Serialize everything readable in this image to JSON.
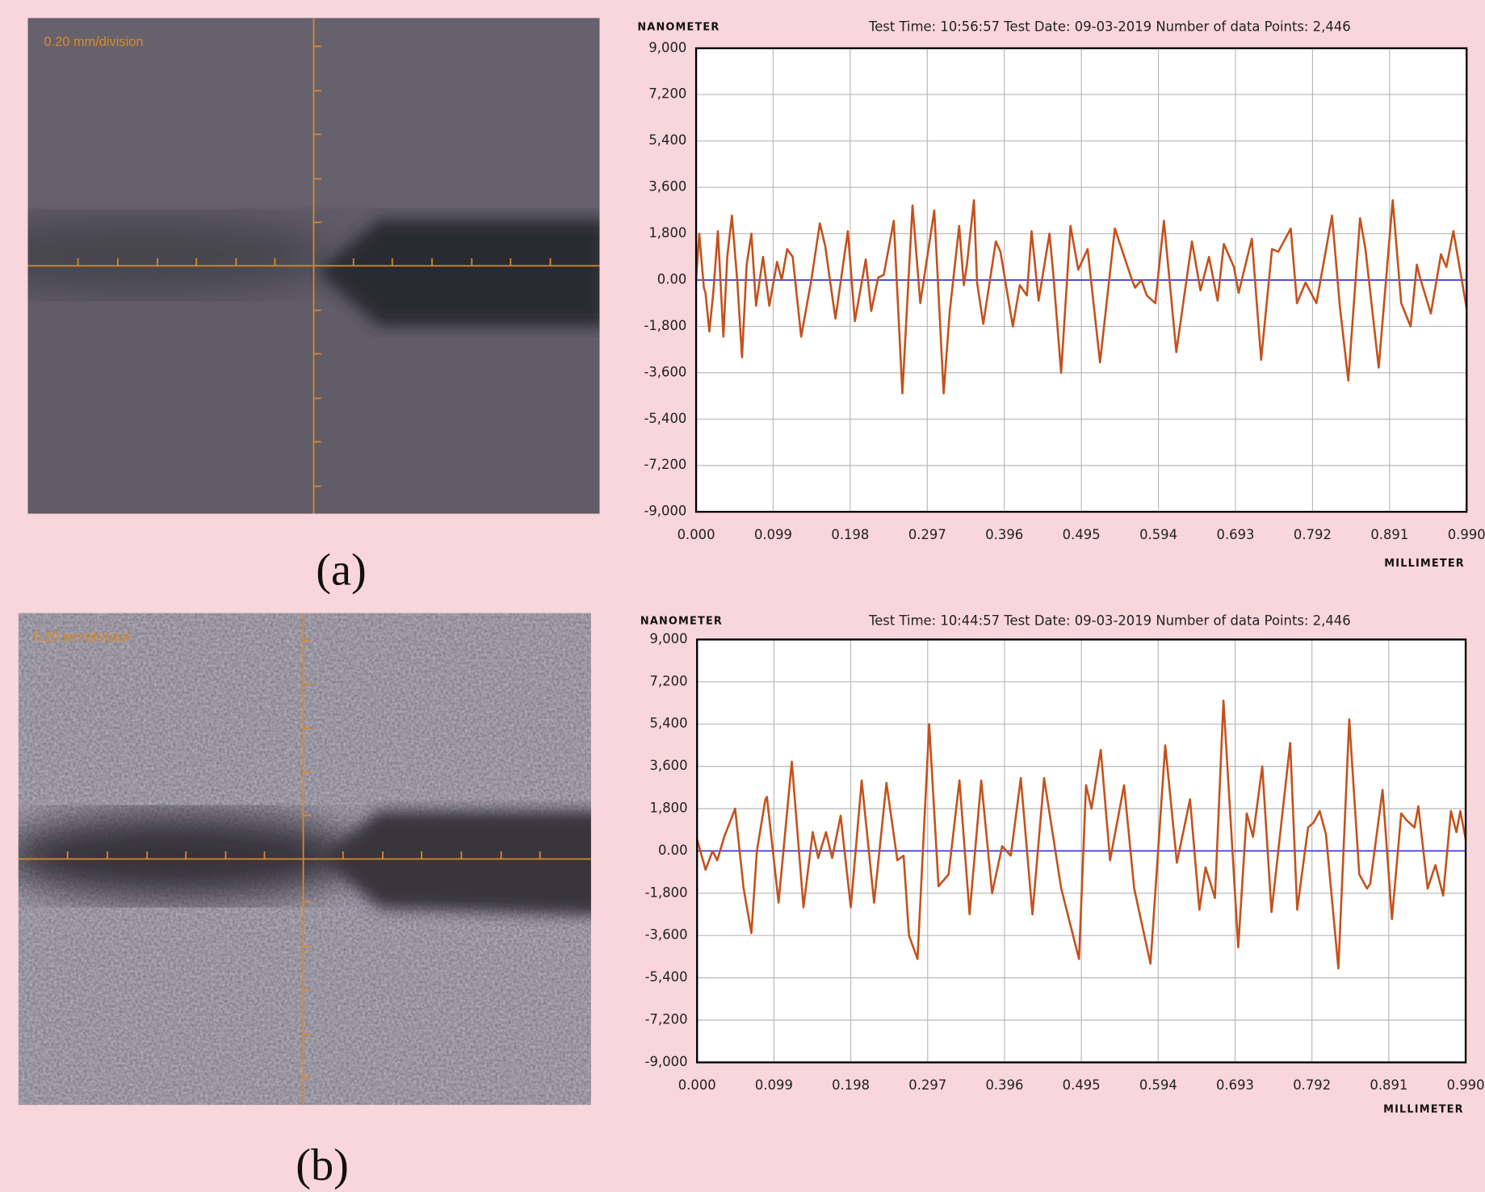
{
  "panels": [
    {
      "label": "(a)",
      "scale_text": "0.20 mm/division"
    },
    {
      "label": "(b)",
      "scale_text": "0.20 mm/division"
    }
  ],
  "chart_data": [
    {
      "type": "line",
      "title": "Test Time: 10:56:57  Test Date: 09-03-2019  Number of data Points: 2,446",
      "y_label": "NANOMETER",
      "x_label": "MILLIMETER",
      "color": "#c4511c",
      "zero_line_color": "#3b3bd6",
      "grid": true,
      "xlim": [
        0,
        0.99
      ],
      "xticks": [
        {
          "value": 0,
          "label": "0.000"
        },
        {
          "value": 0.099,
          "label": "0.099"
        },
        {
          "value": 0.198,
          "label": "0.198"
        },
        {
          "value": 0.297,
          "label": "0.297"
        },
        {
          "value": 0.396,
          "label": "0.396"
        },
        {
          "value": 0.495,
          "label": "0.495"
        },
        {
          "value": 0.594,
          "label": "0.594"
        },
        {
          "value": 0.693,
          "label": "0.693"
        },
        {
          "value": 0.792,
          "label": "0.792"
        },
        {
          "value": 0.891,
          "label": "0.891"
        },
        {
          "value": 0.99,
          "label": "0.990"
        }
      ],
      "ylim": [
        -9000,
        9000
      ],
      "yticks": [
        {
          "value": -9000,
          "label": "-9,000"
        },
        {
          "value": -7200,
          "label": "-7,200"
        },
        {
          "value": -5400,
          "label": "-5,400"
        },
        {
          "value": -3600,
          "label": "-3,600"
        },
        {
          "value": -1800,
          "label": "-1,800"
        },
        {
          "value": 0,
          "label": "0.00"
        },
        {
          "value": 1800,
          "label": "1,800"
        },
        {
          "value": 3600,
          "label": "3,600"
        },
        {
          "value": 5400,
          "label": "5,400"
        },
        {
          "value": 7200,
          "label": "7,200"
        },
        {
          "value": 9000,
          "label": "9,000"
        }
      ],
      "x": [
        0,
        0.004,
        0.01,
        0.012,
        0.017,
        0.022,
        0.028,
        0.035,
        0.04,
        0.046,
        0.053,
        0.059,
        0.065,
        0.071,
        0.077,
        0.086,
        0.094,
        0.104,
        0.11,
        0.117,
        0.124,
        0.135,
        0.148,
        0.159,
        0.166,
        0.171,
        0.179,
        0.195,
        0.204,
        0.218,
        0.225,
        0.234,
        0.241,
        0.254,
        0.265,
        0.272,
        0.278,
        0.288,
        0.306,
        0.318,
        0.326,
        0.338,
        0.344,
        0.348,
        0.357,
        0.361,
        0.369,
        0.385,
        0.391,
        0.407,
        0.416,
        0.425,
        0.431,
        0.44,
        0.454,
        0.459,
        0.469,
        0.481,
        0.491,
        0.503,
        0.519,
        0.538,
        0.559,
        0.564,
        0.572,
        0.579,
        0.59,
        0.601,
        0.617,
        0.637,
        0.648,
        0.659,
        0.67,
        0.678,
        0.691,
        0.697,
        0.714,
        0.726,
        0.74,
        0.748,
        0.764,
        0.772,
        0.783,
        0.797,
        0.817,
        0.827,
        0.838,
        0.853,
        0.86,
        0.877,
        0.895,
        0.906,
        0.918,
        0.926,
        0.93,
        0.944,
        0.957,
        0.964,
        0.973,
        0.99
      ],
      "values": [
        0,
        1800,
        -300,
        -500,
        -2000,
        -500,
        1900,
        -2200,
        900,
        2500,
        -100,
        -3000,
        600,
        1800,
        -1000,
        900,
        -1000,
        700,
        0,
        1200,
        900,
        -2200,
        0,
        2200,
        1300,
        200,
        -1500,
        1900,
        -1600,
        800,
        -1200,
        100,
        200,
        2300,
        -4400,
        -500,
        2900,
        -900,
        2700,
        -4400,
        -1200,
        2100,
        -200,
        600,
        3100,
        -100,
        -1700,
        1500,
        1100,
        -1800,
        -200,
        -600,
        1900,
        -800,
        1800,
        200,
        -3600,
        2100,
        400,
        1200,
        -3200,
        2000,
        100,
        -300,
        0,
        -600,
        -900,
        2300,
        -2800,
        1500,
        -400,
        900,
        -800,
        1400,
        500,
        -500,
        1600,
        -3100,
        1200,
        1100,
        2000,
        -900,
        -100,
        -900,
        2500,
        -1000,
        -3900,
        2400,
        1200,
        -3400,
        3100,
        -900,
        -1800,
        600,
        100,
        -1300,
        1000,
        500,
        1900,
        -1100
      ]
    },
    {
      "type": "line",
      "title": "Test Time: 10:44:57  Test Date: 09-03-2019  Number of data Points: 2,446",
      "y_label": "NANOMETER",
      "x_label": "MILLIMETER",
      "color": "#c4511c",
      "zero_line_color": "#3b3bd6",
      "grid": true,
      "xlim": [
        0,
        0.99
      ],
      "xticks": [
        {
          "value": 0,
          "label": "0.000"
        },
        {
          "value": 0.099,
          "label": "0.099"
        },
        {
          "value": 0.198,
          "label": "0.198"
        },
        {
          "value": 0.297,
          "label": "0.297"
        },
        {
          "value": 0.396,
          "label": "0.396"
        },
        {
          "value": 0.495,
          "label": "0.495"
        },
        {
          "value": 0.594,
          "label": "0.594"
        },
        {
          "value": 0.693,
          "label": "0.693"
        },
        {
          "value": 0.792,
          "label": "0.792"
        },
        {
          "value": 0.891,
          "label": "0.891"
        },
        {
          "value": 0.99,
          "label": "0.990"
        }
      ],
      "ylim": [
        -9000,
        9000
      ],
      "yticks": [
        {
          "value": -9000,
          "label": "-9,000"
        },
        {
          "value": -7200,
          "label": "-7,200"
        },
        {
          "value": -5400,
          "label": "-5,400"
        },
        {
          "value": -3600,
          "label": "-3,600"
        },
        {
          "value": -1800,
          "label": "-1,800"
        },
        {
          "value": 0,
          "label": "0.00"
        },
        {
          "value": 1800,
          "label": "1,800"
        },
        {
          "value": 3600,
          "label": "3,600"
        },
        {
          "value": 5400,
          "label": "5,400"
        },
        {
          "value": 7200,
          "label": "7,200"
        },
        {
          "value": 9000,
          "label": "9,000"
        }
      ],
      "x": [
        0,
        0.011,
        0.02,
        0.026,
        0.035,
        0.049,
        0.06,
        0.07,
        0.077,
        0.088,
        0.09,
        0.105,
        0.122,
        0.137,
        0.149,
        0.156,
        0.166,
        0.174,
        0.185,
        0.198,
        0.212,
        0.228,
        0.244,
        0.258,
        0.266,
        0.273,
        0.284,
        0.299,
        0.311,
        0.324,
        0.338,
        0.351,
        0.366,
        0.38,
        0.393,
        0.404,
        0.417,
        0.432,
        0.447,
        0.469,
        0.492,
        0.501,
        0.508,
        0.52,
        0.532,
        0.55,
        0.563,
        0.584,
        0.603,
        0.618,
        0.635,
        0.647,
        0.655,
        0.667,
        0.678,
        0.697,
        0.708,
        0.716,
        0.728,
        0.74,
        0.764,
        0.773,
        0.787,
        0.794,
        0.802,
        0.81,
        0.826,
        0.84,
        0.853,
        0.863,
        0.867,
        0.883,
        0.895,
        0.907,
        0.914,
        0.924,
        0.929,
        0.941,
        0.951,
        0.961,
        0.971,
        0.978,
        0.983,
        0.99
      ],
      "values": [
        500,
        -800,
        0,
        -400,
        600,
        1800,
        -1600,
        -3500,
        0,
        2200,
        2300,
        -2200,
        3800,
        -2400,
        800,
        -300,
        800,
        -300,
        1500,
        -2400,
        3000,
        -2200,
        2900,
        -400,
        -200,
        -3600,
        -4600,
        5400,
        -1500,
        -1000,
        3000,
        -2700,
        3000,
        -1800,
        200,
        -200,
        3100,
        -2700,
        3100,
        -1600,
        -4600,
        2800,
        1800,
        4300,
        -400,
        2800,
        -1600,
        -4800,
        4500,
        -500,
        2200,
        -2500,
        -700,
        -2000,
        6400,
        -4100,
        1600,
        600,
        3600,
        -2600,
        4600,
        -2500,
        1000,
        1200,
        1700,
        700,
        -5000,
        5600,
        -1000,
        -1600,
        -1400,
        2600,
        -2900,
        1600,
        1300,
        1000,
        1900,
        -1600,
        -600,
        -1900,
        1700,
        800,
        1700,
        500
      ]
    }
  ]
}
